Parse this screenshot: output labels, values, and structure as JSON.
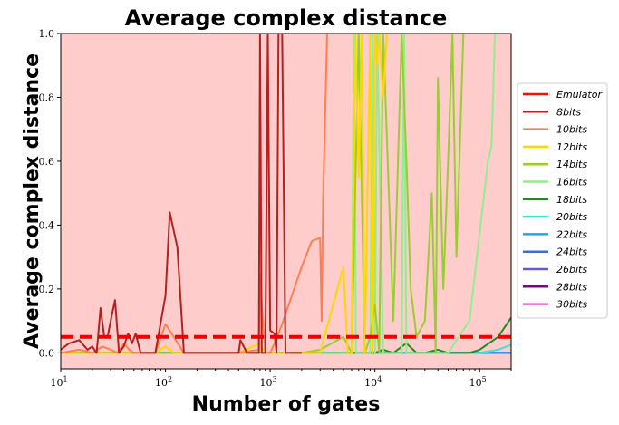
{
  "chart_data": {
    "type": "line",
    "title": "Average complex distance",
    "xlabel": "Number of gates",
    "ylabel": "Average complex distance",
    "xscale": "log",
    "xlim": [
      10,
      200000
    ],
    "ylim": [
      -0.05,
      1.0
    ],
    "grid": false,
    "legend_position": "right, outside plot",
    "background_color": "#ffcccc",
    "threshold": {
      "y": 0.05,
      "style": "dashed",
      "color": "#ee0000"
    },
    "yticks": [
      0.0,
      0.2,
      0.4,
      0.6,
      0.8,
      1.0
    ],
    "ytick_labels": [
      "0.0",
      "0.2",
      "0.4",
      "0.6",
      "0.8",
      "1.0"
    ],
    "xticks": [
      10,
      100,
      1000,
      10000,
      100000
    ],
    "xtick_bases": [
      "10",
      "10",
      "10",
      "10",
      "10"
    ],
    "xtick_exps": [
      "1",
      "2",
      "3",
      "4",
      "5"
    ],
    "series": [
      {
        "name": "Emulator",
        "color": "#ee1111",
        "x": [],
        "y": []
      },
      {
        "name": "8bits",
        "color": "#b22222",
        "x": [
          10,
          12,
          15,
          18,
          20,
          22,
          24,
          26,
          28,
          30,
          33,
          36,
          40,
          44,
          48,
          52,
          58,
          65,
          80,
          100,
          110,
          130,
          150,
          200,
          300,
          500,
          520,
          600,
          700,
          780,
          800,
          830,
          900,
          950,
          1000,
          1100,
          1150,
          1200,
          1300,
          1400,
          2000
        ],
        "y": [
          0.01,
          0.03,
          0.04,
          0.01,
          0.02,
          0.0,
          0.14,
          0.05,
          0.05,
          0.1,
          0.165,
          0.0,
          0.02,
          0.06,
          0.03,
          0.06,
          0.0,
          0.0,
          0.0,
          0.18,
          0.44,
          0.33,
          0.0,
          0.0,
          0.0,
          0.0,
          0.04,
          0.0,
          0.0,
          0.0,
          1.0,
          0.0,
          0.0,
          1.0,
          0.07,
          0.06,
          0.0,
          1.0,
          1.0,
          0.0,
          0.0
        ]
      },
      {
        "name": "10bits",
        "color": "#ff7f50",
        "x": [
          10,
          15,
          20,
          25,
          30,
          35,
          40,
          45,
          50,
          60,
          80,
          100,
          120,
          150,
          200,
          500,
          780,
          800,
          850,
          900,
          1000,
          1100,
          1300,
          2000,
          2500,
          3000,
          3100,
          3200,
          3500
        ],
        "y": [
          0.0,
          0.01,
          0.0,
          0.02,
          0.01,
          0.0,
          0.03,
          0.01,
          0.0,
          0.0,
          0.0,
          0.09,
          0.05,
          0.0,
          0.0,
          0.0,
          0.01,
          0.245,
          0.1,
          0.0,
          0.0,
          0.03,
          0.09,
          0.27,
          0.35,
          0.36,
          0.1,
          0.48,
          1.0
        ]
      },
      {
        "name": "12bits",
        "color": "#ffd700",
        "x": [
          10,
          50,
          80,
          100,
          120,
          150,
          500,
          800,
          900,
          1000,
          2000,
          3000,
          5000,
          5500,
          6000,
          6500,
          7000,
          7500,
          8000,
          9000,
          9500,
          10000,
          10500,
          11000,
          12000,
          13000
        ],
        "y": [
          0.0,
          0.0,
          0.0,
          0.02,
          0.0,
          0.0,
          0.0,
          0.03,
          0.0,
          0.0,
          0.0,
          0.0,
          0.27,
          0.0,
          0.0,
          1.0,
          0.55,
          1.0,
          0.0,
          1.0,
          0.0,
          1.0,
          0.9,
          1.0,
          0.8,
          1.0
        ]
      },
      {
        "name": "14bits",
        "color": "#9acd32",
        "x": [
          10,
          1000,
          2000,
          3000,
          5000,
          6000,
          7000,
          8000,
          9000,
          10000,
          11000,
          12000,
          15000,
          18000,
          20000,
          22000,
          25000,
          30000,
          35000,
          38000,
          40000,
          45000,
          50000,
          55000,
          60000,
          70000
        ],
        "y": [
          0.0,
          0.0,
          0.0,
          0.01,
          0.05,
          0.0,
          1.0,
          0.0,
          0.05,
          0.15,
          0.0,
          1.0,
          0.1,
          1.0,
          0.6,
          0.2,
          0.05,
          0.1,
          0.5,
          0.0,
          0.86,
          0.2,
          0.6,
          1.0,
          0.3,
          1.0
        ]
      },
      {
        "name": "16bits",
        "color": "#90ee90",
        "x": [
          10,
          3000,
          5000,
          6000,
          6300,
          6600,
          7000,
          9000,
          9500,
          10000,
          10500,
          12000,
          15000,
          18000,
          19000,
          20000,
          30000,
          50000,
          80000,
          120000,
          130000,
          140000
        ],
        "y": [
          0.0,
          0.0,
          0.0,
          0.0,
          1.0,
          0.0,
          0.0,
          0.0,
          1.0,
          0.0,
          1.0,
          0.0,
          0.0,
          0.0,
          1.0,
          0.0,
          0.0,
          0.0,
          0.1,
          0.6,
          0.65,
          1.0
        ]
      },
      {
        "name": "18bits",
        "color": "#228b22",
        "x": [
          10,
          10000,
          12000,
          15000,
          20000,
          25000,
          30000,
          40000,
          50000,
          60000,
          80000,
          100000,
          150000,
          200000
        ],
        "y": [
          0.0,
          0.0,
          0.01,
          0.0,
          0.03,
          0.0,
          0.0,
          0.01,
          0.0,
          0.0,
          0.0,
          0.01,
          0.05,
          0.11
        ]
      },
      {
        "name": "20bits",
        "color": "#40e0d0",
        "x": [
          10,
          100000,
          150000,
          200000
        ],
        "y": [
          0.0,
          0.0,
          0.01,
          0.025
        ]
      },
      {
        "name": "22bits",
        "color": "#1ea6f0",
        "x": [
          10,
          200000
        ],
        "y": [
          0.0,
          0.0
        ]
      },
      {
        "name": "24bits",
        "color": "#4169e1",
        "x": [
          10,
          200000
        ],
        "y": [
          0.0,
          0.0
        ]
      },
      {
        "name": "26bits",
        "color": "#6a5acd",
        "x": [
          10,
          200000
        ],
        "y": [
          0.0,
          0.0
        ]
      },
      {
        "name": "28bits",
        "color": "#800080",
        "x": [
          10,
          200000
        ],
        "y": [
          0.0,
          0.0
        ]
      },
      {
        "name": "30bits",
        "color": "#da70d6",
        "x": [
          10,
          200000
        ],
        "y": [
          0.0,
          0.0
        ]
      }
    ]
  }
}
